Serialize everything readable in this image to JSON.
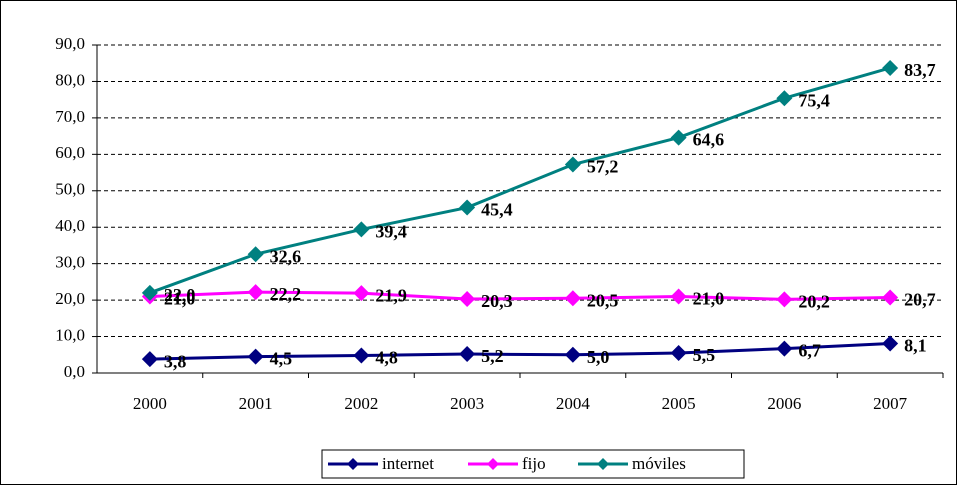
{
  "chart_data": {
    "type": "line",
    "categories": [
      "2000",
      "2001",
      "2002",
      "2003",
      "2004",
      "2005",
      "2006",
      "2007"
    ],
    "series": [
      {
        "name": "internet",
        "color": "#000080",
        "values": [
          3.8,
          4.5,
          4.8,
          5.2,
          5.0,
          5.5,
          6.7,
          8.1
        ],
        "value_labels": [
          "3,8",
          "4,5",
          "4,8",
          "5,2",
          "5,0",
          "5,5",
          "6,7",
          "8,1"
        ]
      },
      {
        "name": "fijo",
        "color": "#ff00ff",
        "values": [
          21.0,
          22.2,
          21.9,
          20.3,
          20.5,
          21.0,
          20.2,
          20.7
        ],
        "value_labels": [
          "21,0",
          "22,2",
          "21,9",
          "20,3",
          "20,5",
          "21,0",
          "20,2",
          "20,7"
        ]
      },
      {
        "name": "móviles",
        "color": "#008080",
        "values": [
          22.0,
          32.6,
          39.4,
          45.4,
          57.2,
          64.6,
          75.4,
          83.7
        ],
        "value_labels": [
          "22,0",
          "32,6",
          "39,4",
          "45,4",
          "57,2",
          "64,6",
          "75,4",
          "83,7"
        ]
      }
    ],
    "ylim": [
      0,
      90
    ],
    "yticks": [
      {
        "value": 0,
        "label": "0,0"
      },
      {
        "value": 10,
        "label": "10,0"
      },
      {
        "value": 20,
        "label": "20,0"
      },
      {
        "value": 30,
        "label": "30,0"
      },
      {
        "value": 40,
        "label": "40,0"
      },
      {
        "value": 50,
        "label": "50,0"
      },
      {
        "value": 60,
        "label": "60,0"
      },
      {
        "value": 70,
        "label": "70,0"
      },
      {
        "value": 80,
        "label": "80,0"
      },
      {
        "value": 90,
        "label": "90,0"
      }
    ],
    "grid": true,
    "legend": "bottom"
  }
}
